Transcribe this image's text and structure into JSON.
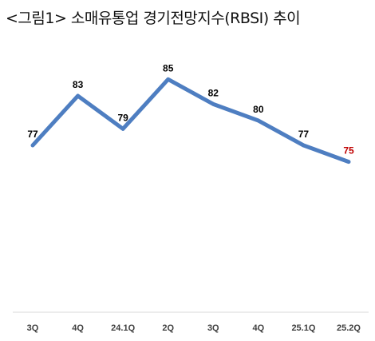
{
  "chart_data": {
    "type": "line",
    "title": "<그림1> 소매유통업 경기전망지수(RBSI) 추이",
    "xlabel": "",
    "ylabel": "",
    "categories": [
      "3Q",
      "4Q",
      "24.1Q",
      "2Q",
      "3Q",
      "4Q",
      "25.1Q",
      "25.2Q"
    ],
    "series": [
      {
        "values": [
          77,
          83,
          79,
          85,
          82,
          80,
          77,
          75
        ]
      }
    ],
    "ylim": [
      50,
      100
    ],
    "grid": false,
    "legend": "none",
    "colors": {
      "line": "#4E7EC1",
      "label": "#000000",
      "highlight_label": "#C00000",
      "axis": "#D9D9D9"
    },
    "highlight_index": 7
  }
}
